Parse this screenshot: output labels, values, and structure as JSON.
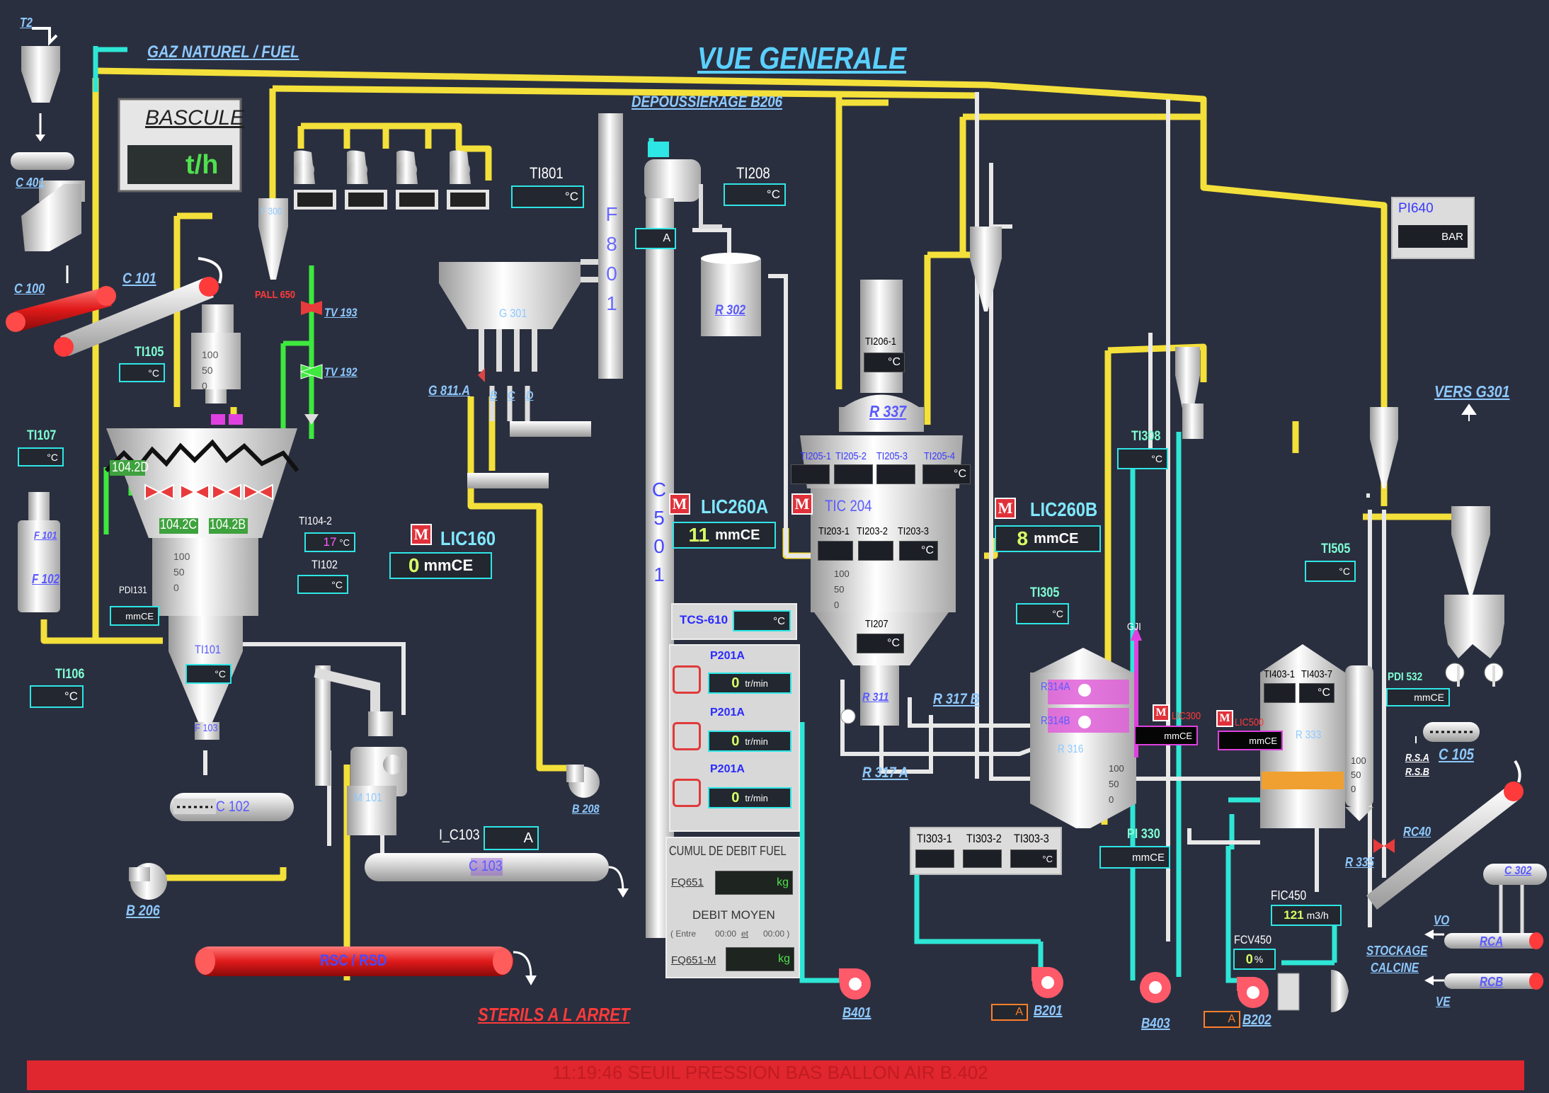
{
  "screen": {
    "title": "VUE GENERALE",
    "gas_header": "GAZ NATUREL / FUEL",
    "dedusting_header": "DEPOUSSIERAGE B206",
    "to_g301": "VERS G301",
    "sterile_status": "STERILS A L ARRET",
    "storage_label": [
      "STOCKAGE",
      "CALCINE"
    ],
    "alarm_message": "11:19:46 SEUIL PRESSION BAS BALLON AIR B.402"
  },
  "bascule": {
    "title": "BASCULE",
    "unit": "t/h"
  },
  "equipment_labels": {
    "t2": "T2",
    "c401": "C 401",
    "c100": "C 100",
    "c101": "C 101",
    "tv193": "TV 193",
    "tv192": "TV 192",
    "pall": "PALL 650",
    "g301": "G 301",
    "g811": "G 811.A",
    "g811_bcd": [
      "B",
      "C",
      "D"
    ],
    "f801": "F 801",
    "c501": "C 501",
    "r302": "R 302",
    "r337": "R 337",
    "r311": "R 311",
    "r317b": "R 317 B",
    "r317a": "R 317 A",
    "r314a": "R314A",
    "r314b": "R314B",
    "r316": "R 316",
    "r335": "R 335",
    "rc40": "RC40",
    "r333": "R 333",
    "m101": "M 101",
    "c102": "C 102",
    "c103": "C 103",
    "rsc_rsd": "RSC / RSD",
    "b208": "B 208",
    "b206": "B 206",
    "b401": "B401",
    "b201": "B201",
    "b403": "B403",
    "b202": "B202",
    "c105": "C 105",
    "c302": "C 302",
    "rsa": "R.S.A",
    "rsb": "R.S.B",
    "rca": "RCA",
    "rcb": "RCB",
    "vo": "VO",
    "ve": "VE",
    "gji": "GJI",
    "f101": "F 101",
    "f102": "F 102",
    "ti101": "TI101",
    "f103": "F 103",
    "s104_2d": "104.2D",
    "s104_2c": "104.2C",
    "s104_2b": "104.2B",
    "cyclone_top": "F 300"
  },
  "instruments": {
    "ti801": {
      "tag": "TI801",
      "unit": "°C"
    },
    "ti208": {
      "tag": "TI208",
      "unit": "°C"
    },
    "pi640": {
      "tag": "PI640",
      "unit": "BAR"
    },
    "ti105": {
      "tag": "TI105",
      "unit": "°C"
    },
    "ti107": {
      "tag": "TI107",
      "unit": "°C"
    },
    "ti104_2": {
      "tag": "TI104-2",
      "value": "17",
      "unit": "°C"
    },
    "ti102": {
      "tag": "TI102",
      "unit": "°C"
    },
    "pdi131": {
      "tag": "PDI131",
      "unit": "mmCE"
    },
    "ti101": {
      "unit": "°C"
    },
    "ti106": {
      "tag": "TI106",
      "unit": "°C"
    },
    "lic160": {
      "tag": "LIC160",
      "value": "0",
      "unit": "mmCE"
    },
    "lic260a": {
      "tag": "LIC260A",
      "value": "11",
      "unit": "mmCE"
    },
    "lic260b": {
      "tag": "LIC260B",
      "value": "8",
      "unit": "mmCE"
    },
    "tic204": {
      "tag": "TIC 204"
    },
    "ti206_1": {
      "tag": "TI206-1",
      "unit": "°C"
    },
    "ti205": {
      "tags": [
        "TI205-1",
        "TI205-2",
        "TI205-3",
        "TI205-4"
      ],
      "unit": "°C"
    },
    "ti203": {
      "tags": [
        "TI203-1",
        "TI203-2",
        "TI203-3"
      ],
      "unit": "°C"
    },
    "ti207": {
      "tag": "TI207",
      "unit": "°C"
    },
    "ti308": {
      "tag": "TI308",
      "unit": "°C"
    },
    "ti305": {
      "tag": "TI305",
      "unit": "°C"
    },
    "lic300": {
      "tag": "LIC300",
      "unit": "mmCE"
    },
    "lic500": {
      "tag": "LIC500",
      "unit": "mmCE"
    },
    "ti303": {
      "tags": [
        "TI303-1",
        "TI303-2",
        "TI303-3"
      ],
      "unit": "°C"
    },
    "pi330": {
      "tag": "PI 330",
      "unit": "mmCE"
    },
    "ti505": {
      "tag": "TI505",
      "unit": "°C"
    },
    "ti403": {
      "tags": [
        "TI403-1",
        "TI403-7"
      ],
      "unit": "°C"
    },
    "pdi532": {
      "tag": "PDI 532",
      "unit": "mmCE"
    },
    "fic450": {
      "tag": "FIC450",
      "value": "121",
      "unit": "m3/h"
    },
    "fcv450": {
      "tag": "FCV450",
      "value": "0",
      "unit": "%"
    },
    "i_c103": {
      "tag": "I_C103",
      "unit": "A"
    },
    "c501_amp": {
      "unit": "A"
    },
    "b201_amp": {
      "unit": "A"
    },
    "b202_amp": {
      "unit": "A"
    }
  },
  "gauge_scale": [
    "100",
    "50",
    "0"
  ],
  "fuel_panel": {
    "tcs": {
      "tag": "TCS-610",
      "unit": "°C"
    },
    "pumps": [
      {
        "tag": "P201A",
        "value": "0",
        "unit": "tr/min"
      },
      {
        "tag": "P201A",
        "value": "0",
        "unit": "tr/min"
      },
      {
        "tag": "P201A",
        "value": "0",
        "unit": "tr/min"
      }
    ],
    "cumul_title": "CUMUL DE DEBIT FUEL",
    "fq651": {
      "tag": "FQ651",
      "unit": "kg"
    },
    "debit_title": "DEBIT MOYEN",
    "debit_range": {
      "prefix": "( Entre",
      "from": "00:00",
      "and": "et",
      "to": "00:00 )"
    },
    "fq651m": {
      "tag": "FQ651-M",
      "unit": "kg"
    }
  },
  "motor_button_label": "M",
  "colors": {
    "background": "#2a2f3f",
    "yellow_line": "#f4e03a",
    "cyan_line": "#2ee6d6",
    "white_line": "#e8e8e8",
    "green_line": "#3ee83e",
    "alarm_bar": "#e0262e",
    "red_conveyor": "#ee2a2a"
  }
}
